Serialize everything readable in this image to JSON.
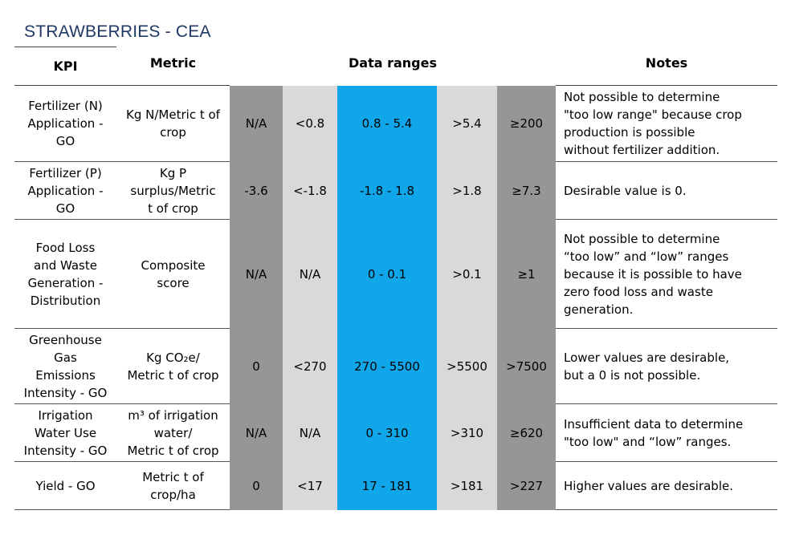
{
  "title": "STRAWBERRIES - CEA",
  "headers": {
    "kpi": "KPI",
    "metric": "Metric",
    "ranges": "Data ranges",
    "notes": "Notes"
  },
  "rows": [
    {
      "kpi": [
        "Fertilizer (N)",
        "Application -",
        "GO"
      ],
      "metric": [
        "Kg N/Metric t of",
        "crop"
      ],
      "ranges": [
        "N/A",
        "<0.8",
        "0.8 - 5.4",
        ">5.4",
        "≥200"
      ],
      "notes": [
        "Not possible to determine",
        "\"too low range\" because crop",
        "production is possible",
        "without fertilizer addition."
      ]
    },
    {
      "kpi": [
        "Fertilizer (P)",
        "Application -",
        "GO"
      ],
      "metric": [
        "Kg P",
        "surplus/Metric",
        "t of crop"
      ],
      "ranges": [
        "-3.6",
        "<-1.8",
        "-1.8 - 1.8",
        ">1.8",
        "≥7.3"
      ],
      "notes": [
        "Desirable value is 0."
      ]
    },
    {
      "kpi": [
        "Food Loss",
        "and Waste",
        "Generation -",
        "Distribution"
      ],
      "metric": [
        "Composite",
        "score"
      ],
      "ranges": [
        "N/A",
        "N/A",
        "0 - 0.1",
        ">0.1",
        "≥1"
      ],
      "notes": [
        "Not possible to determine",
        "“too low” and “low” ranges",
        "because it is possible to have",
        "zero food loss and waste",
        "generation."
      ]
    },
    {
      "kpi": [
        "Greenhouse",
        "Gas",
        "Emissions",
        "Intensity - GO"
      ],
      "metric": [
        "Kg CO₂e/",
        "Metric t of crop"
      ],
      "ranges": [
        "0",
        "<270",
        "270 - 5500",
        ">5500",
        ">7500"
      ],
      "notes": [
        "Lower values are desirable,",
        "but a 0 is not possible."
      ]
    },
    {
      "kpi": [
        "Irrigation",
        "Water Use",
        "Intensity - GO"
      ],
      "metric": [
        "m³ of irrigation",
        "water/",
        "Metric t of crop"
      ],
      "ranges": [
        "N/A",
        "N/A",
        "0 - 310",
        ">310",
        "≥620"
      ],
      "notes": [
        "Insufficient data to determine",
        "\"too low\" and “low” ranges."
      ]
    },
    {
      "kpi": [
        "Yield - GO"
      ],
      "metric": [
        "Metric t of",
        "crop/ha"
      ],
      "ranges": [
        "0",
        "<17",
        "17 - 181",
        ">181",
        ">227"
      ],
      "notes": [
        "Higher values are desirable."
      ]
    }
  ]
}
